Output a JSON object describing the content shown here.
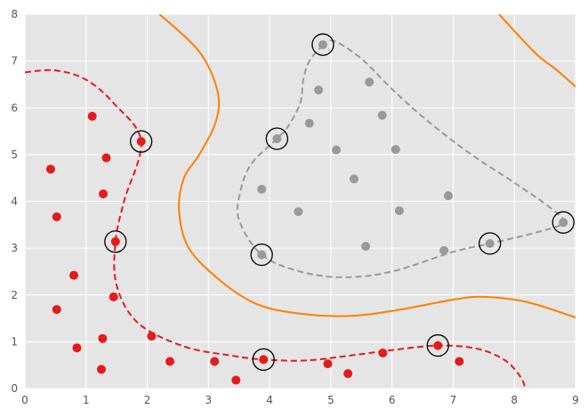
{
  "chart_data": {
    "type": "scatter",
    "title": "",
    "xlabel": "",
    "ylabel": "",
    "xlim": [
      0,
      9
    ],
    "ylim": [
      0,
      8
    ],
    "grid": true,
    "x_ticks": [
      0,
      1,
      2,
      3,
      4,
      5,
      6,
      7,
      8,
      9
    ],
    "y_ticks": [
      0,
      1,
      2,
      3,
      4,
      5,
      6,
      7,
      8
    ],
    "colors": {
      "background": "#e5e5e5",
      "grid": "#ffffff",
      "red": "#e41a1c",
      "gray": "#999999",
      "orange": "#ff7f00",
      "support_ring": "#000000"
    },
    "series": [
      {
        "class": "red",
        "color": "#e41a1c",
        "points": [
          [
            1.1,
            5.82
          ],
          [
            1.9,
            5.28
          ],
          [
            1.33,
            4.93
          ],
          [
            0.42,
            4.69
          ],
          [
            1.28,
            4.16
          ],
          [
            0.52,
            3.67
          ],
          [
            1.48,
            3.14
          ],
          [
            0.8,
            2.42
          ],
          [
            1.45,
            1.96
          ],
          [
            0.52,
            1.69
          ],
          [
            2.07,
            1.12
          ],
          [
            1.27,
            1.07
          ],
          [
            0.85,
            0.87
          ],
          [
            2.37,
            0.58
          ],
          [
            3.1,
            0.58
          ],
          [
            3.9,
            0.62
          ],
          [
            4.95,
            0.53
          ],
          [
            5.28,
            0.32
          ],
          [
            5.85,
            0.76
          ],
          [
            6.75,
            0.92
          ],
          [
            7.1,
            0.58
          ],
          [
            1.25,
            0.41
          ],
          [
            3.45,
            0.18
          ]
        ]
      },
      {
        "class": "gray",
        "color": "#999999",
        "points": [
          [
            4.87,
            7.35
          ],
          [
            5.63,
            6.55
          ],
          [
            4.8,
            6.38
          ],
          [
            4.65,
            5.67
          ],
          [
            5.84,
            5.84
          ],
          [
            4.12,
            5.34
          ],
          [
            5.09,
            5.1
          ],
          [
            6.06,
            5.11
          ],
          [
            3.87,
            4.26
          ],
          [
            5.38,
            4.48
          ],
          [
            4.47,
            3.78
          ],
          [
            6.12,
            3.8
          ],
          [
            6.92,
            4.12
          ],
          [
            5.57,
            3.04
          ],
          [
            3.87,
            2.86
          ],
          [
            6.85,
            2.95
          ],
          [
            7.6,
            3.1
          ],
          [
            8.8,
            3.55
          ]
        ]
      }
    ],
    "support_vectors": [
      [
        4.87,
        7.35
      ],
      [
        4.12,
        5.34
      ],
      [
        1.9,
        5.28
      ],
      [
        1.48,
        3.14
      ],
      [
        3.87,
        2.86
      ],
      [
        7.6,
        3.1
      ],
      [
        8.8,
        3.55
      ],
      [
        3.9,
        0.62
      ],
      [
        6.75,
        0.92
      ]
    ],
    "contours": [
      {
        "class": "red-boundary",
        "style": "dashed",
        "color": "#e41a1c",
        "points": [
          [
            0.0,
            6.76
          ],
          [
            0.5,
            6.8
          ],
          [
            1.0,
            6.6
          ],
          [
            1.45,
            6.1
          ],
          [
            1.9,
            5.28
          ],
          [
            1.62,
            4.0
          ],
          [
            1.48,
            3.14
          ],
          [
            1.5,
            2.2
          ],
          [
            1.85,
            1.4
          ],
          [
            2.6,
            0.9
          ],
          [
            3.4,
            0.7
          ],
          [
            3.9,
            0.62
          ],
          [
            4.6,
            0.6
          ],
          [
            5.4,
            0.72
          ],
          [
            6.0,
            0.82
          ],
          [
            6.75,
            0.92
          ],
          [
            7.4,
            0.85
          ],
          [
            7.85,
            0.6
          ],
          [
            8.1,
            0.25
          ],
          [
            8.18,
            0.0
          ]
        ]
      },
      {
        "class": "gray-boundary",
        "style": "dashed",
        "color": "#999999",
        "points": [
          [
            4.87,
            7.35
          ],
          [
            4.65,
            7.0
          ],
          [
            4.55,
            6.6
          ],
          [
            4.5,
            6.1
          ],
          [
            4.3,
            5.6
          ],
          [
            4.12,
            5.34
          ],
          [
            3.7,
            4.8
          ],
          [
            3.52,
            4.2
          ],
          [
            3.5,
            3.6
          ],
          [
            3.87,
            2.86
          ],
          [
            4.5,
            2.5
          ],
          [
            5.2,
            2.38
          ],
          [
            6.0,
            2.5
          ],
          [
            7.0,
            2.92
          ],
          [
            7.6,
            3.1
          ],
          [
            8.4,
            3.35
          ],
          [
            8.8,
            3.55
          ],
          [
            8.6,
            3.85
          ],
          [
            8.0,
            4.4
          ],
          [
            7.3,
            5.0
          ],
          [
            6.6,
            5.7
          ],
          [
            6.0,
            6.4
          ],
          [
            5.5,
            7.05
          ],
          [
            5.05,
            7.43
          ],
          [
            4.87,
            7.35
          ]
        ]
      },
      {
        "class": "orange-boundary-left",
        "style": "solid",
        "color": "#ff7f00",
        "points": [
          [
            2.2,
            8.0
          ],
          [
            2.85,
            7.2
          ],
          [
            3.15,
            6.35
          ],
          [
            3.12,
            5.7
          ],
          [
            2.85,
            5.0
          ],
          [
            2.6,
            4.5
          ],
          [
            2.52,
            3.8
          ],
          [
            2.68,
            3.0
          ],
          [
            3.2,
            2.3
          ],
          [
            3.8,
            1.8
          ],
          [
            4.5,
            1.6
          ],
          [
            5.3,
            1.55
          ],
          [
            6.1,
            1.68
          ],
          [
            7.0,
            1.9
          ],
          [
            7.5,
            1.96
          ],
          [
            8.2,
            1.85
          ],
          [
            9.0,
            1.52
          ]
        ]
      },
      {
        "class": "orange-boundary-right",
        "style": "solid",
        "color": "#ff7f00",
        "points": [
          [
            7.75,
            8.0
          ],
          [
            8.1,
            7.5
          ],
          [
            8.4,
            7.1
          ],
          [
            8.7,
            6.8
          ],
          [
            9.0,
            6.45
          ]
        ]
      }
    ]
  }
}
